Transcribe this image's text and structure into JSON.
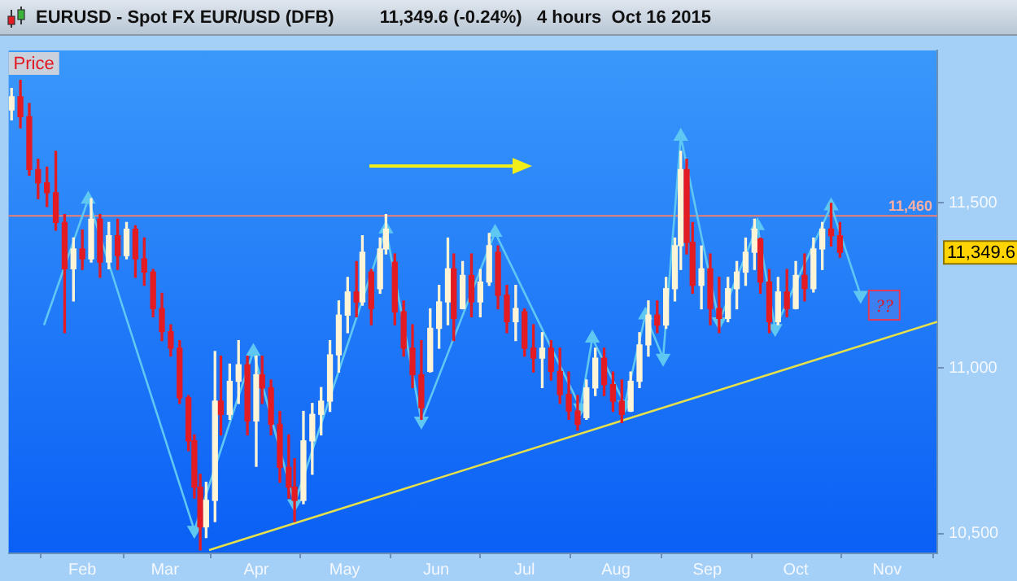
{
  "chart_data": {
    "type": "candlestick",
    "title": "EURUSD - Spot FX EUR/USD (DFB)",
    "subtitle": "11,349.6 (-0.24%)   4 hours  Oct 16 2015",
    "x": [
      "2015-01-08",
      "2015-01-11",
      "2015-01-14",
      "2015-01-17",
      "2015-01-20",
      "2015-01-23",
      "2015-01-26",
      "2015-01-29",
      "2015-02-01",
      "2015-02-04",
      "2015-02-07",
      "2015-02-10",
      "2015-02-13",
      "2015-02-16",
      "2015-02-19",
      "2015-02-22",
      "2015-02-25",
      "2015-02-28",
      "2015-03-03",
      "2015-03-06",
      "2015-03-09",
      "2015-03-11",
      "2015-03-13",
      "2015-03-15",
      "2015-03-18",
      "2015-03-20",
      "2015-03-23",
      "2015-03-26",
      "2015-03-29",
      "2015-04-01",
      "2015-04-03",
      "2015-04-06",
      "2015-04-09",
      "2015-04-12",
      "2015-04-14",
      "2015-04-17",
      "2015-04-20",
      "2015-04-23",
      "2015-04-26",
      "2015-04-29",
      "2015-05-02",
      "2015-05-05",
      "2015-05-07",
      "2015-05-10",
      "2015-05-13",
      "2015-05-15",
      "2015-05-18",
      "2015-05-21",
      "2015-05-24",
      "2015-05-27",
      "2015-05-30",
      "2015-06-02",
      "2015-06-05",
      "2015-06-07",
      "2015-06-10",
      "2015-06-13",
      "2015-06-16",
      "2015-06-19",
      "2015-06-22",
      "2015-06-25",
      "2015-06-28",
      "2015-07-01",
      "2015-07-04",
      "2015-07-07",
      "2015-07-10",
      "2015-07-13",
      "2015-07-16",
      "2015-07-19",
      "2015-07-22",
      "2015-07-25",
      "2015-07-28",
      "2015-07-31",
      "2015-08-03",
      "2015-08-06",
      "2015-08-09",
      "2015-08-12",
      "2015-08-15",
      "2015-08-18",
      "2015-08-21",
      "2015-08-23",
      "2015-08-25",
      "2015-08-27",
      "2015-08-30",
      "2015-09-02",
      "2015-09-05",
      "2015-09-08",
      "2015-09-11",
      "2015-09-14",
      "2015-09-17",
      "2015-09-19",
      "2015-09-22",
      "2015-09-25",
      "2015-09-28",
      "2015-10-01",
      "2015-10-04",
      "2015-10-07",
      "2015-10-10",
      "2015-10-13",
      "2015-10-16"
    ],
    "ohlc": [
      [
        11780,
        11845,
        11750,
        11820
      ],
      [
        11820,
        11870,
        11726,
        11760
      ],
      [
        11760,
        11800,
        11583,
        11600
      ],
      [
        11600,
        11631,
        11512,
        11560
      ],
      [
        11560,
        11607,
        11488,
        11530
      ],
      [
        11530,
        11655,
        11417,
        11440
      ],
      [
        11440,
        11464,
        11107,
        11300
      ],
      [
        11300,
        11393,
        11203,
        11360
      ],
      [
        11360,
        11417,
        11298,
        11330
      ],
      [
        11330,
        11512,
        11320,
        11450
      ],
      [
        11450,
        11464,
        11274,
        11320
      ],
      [
        11320,
        11440,
        11300,
        11400
      ],
      [
        11400,
        11450,
        11298,
        11340
      ],
      [
        11340,
        11440,
        11330,
        11420
      ],
      [
        11420,
        11430,
        11274,
        11330
      ],
      [
        11330,
        11393,
        11250,
        11290
      ],
      [
        11290,
        11298,
        11155,
        11180
      ],
      [
        11180,
        11226,
        11083,
        11110
      ],
      [
        11110,
        11131,
        11036,
        11060
      ],
      [
        11060,
        11083,
        10893,
        10910
      ],
      [
        10910,
        10917,
        10750,
        10780
      ],
      [
        10780,
        10798,
        10607,
        10640
      ],
      [
        10640,
        10679,
        10450,
        10520
      ],
      [
        10520,
        10655,
        10488,
        10600
      ],
      [
        10600,
        11050,
        10536,
        10900
      ],
      [
        10900,
        11036,
        10798,
        10860
      ],
      [
        10860,
        11012,
        10845,
        10960
      ],
      [
        10960,
        11083,
        10893,
        11010
      ],
      [
        11010,
        11036,
        10798,
        10840
      ],
      [
        10840,
        11036,
        10703,
        10980
      ],
      [
        10980,
        11036,
        10893,
        10940
      ],
      [
        10940,
        10964,
        10798,
        10830
      ],
      [
        10830,
        10869,
        10655,
        10700
      ],
      [
        10700,
        10798,
        10607,
        10640
      ],
      [
        10640,
        10726,
        10536,
        10600
      ],
      [
        10600,
        10869,
        10590,
        10780
      ],
      [
        10780,
        10893,
        10679,
        10860
      ],
      [
        10860,
        10941,
        10798,
        10900
      ],
      [
        10900,
        11083,
        10869,
        11040
      ],
      [
        11040,
        11203,
        10988,
        11160
      ],
      [
        11160,
        11274,
        11107,
        11230
      ],
      [
        11230,
        11322,
        11155,
        11200
      ],
      [
        11200,
        11400,
        11190,
        11350
      ],
      [
        11290,
        11298,
        11131,
        11180
      ],
      [
        11240,
        11393,
        11226,
        11360
      ],
      [
        11360,
        11464,
        11345,
        11420
      ],
      [
        11320,
        11345,
        11131,
        11170
      ],
      [
        11170,
        11203,
        11036,
        11060
      ],
      [
        11060,
        11131,
        10941,
        10980
      ],
      [
        10980,
        11083,
        10845,
        10880
      ],
      [
        10990,
        11179,
        10988,
        11120
      ],
      [
        11120,
        11250,
        11060,
        11200
      ],
      [
        11200,
        11393,
        11131,
        11300
      ],
      [
        11300,
        11345,
        11083,
        11150
      ],
      [
        11180,
        11322,
        11179,
        11280
      ],
      [
        11280,
        11345,
        11155,
        11200
      ],
      [
        11200,
        11298,
        11155,
        11260
      ],
      [
        11260,
        11407,
        11250,
        11370
      ],
      [
        11350,
        11369,
        11179,
        11220
      ],
      [
        11220,
        11250,
        11107,
        11140
      ],
      [
        11140,
        11250,
        11083,
        11180
      ],
      [
        11170,
        11179,
        11036,
        11060
      ],
      [
        11060,
        11131,
        10988,
        11030
      ],
      [
        11030,
        11107,
        10941,
        11060
      ],
      [
        11060,
        11083,
        10964,
        10990
      ],
      [
        10990,
        11060,
        10893,
        10920
      ],
      [
        10920,
        10988,
        10845,
        10870
      ],
      [
        10870,
        10917,
        10812,
        10830
      ],
      [
        10850,
        10964,
        10845,
        10940
      ],
      [
        10940,
        11060,
        10917,
        11030
      ],
      [
        11030,
        11060,
        10917,
        10950
      ],
      [
        10950,
        10988,
        10869,
        10900
      ],
      [
        10900,
        10964,
        10835,
        10860
      ],
      [
        10870,
        10988,
        10869,
        10960
      ],
      [
        10960,
        11107,
        10941,
        11070
      ],
      [
        11070,
        11203,
        11036,
        11160
      ],
      [
        11160,
        11203,
        11107,
        11130
      ],
      [
        11130,
        11274,
        11120,
        11240
      ],
      [
        11240,
        11393,
        11203,
        11370
      ],
      [
        11370,
        11655,
        11298,
        11600
      ],
      [
        11600,
        11631,
        11345,
        11380
      ],
      [
        11380,
        11440,
        11226,
        11250
      ],
      [
        11250,
        11369,
        11179,
        11300
      ],
      [
        11300,
        11345,
        11131,
        11180
      ],
      [
        11180,
        11274,
        11107,
        11150
      ],
      [
        11150,
        11274,
        11140,
        11240
      ],
      [
        11240,
        11322,
        11179,
        11290
      ],
      [
        11290,
        11393,
        11250,
        11350
      ],
      [
        11350,
        11450,
        11298,
        11420
      ],
      [
        11390,
        11393,
        11226,
        11260
      ],
      [
        11260,
        11298,
        11107,
        11140
      ],
      [
        11140,
        11274,
        11131,
        11230
      ],
      [
        11230,
        11298,
        11155,
        11180
      ],
      [
        11180,
        11322,
        11179,
        11280
      ],
      [
        11280,
        11345,
        11203,
        11240
      ],
      [
        11240,
        11393,
        11230,
        11360
      ],
      [
        11360,
        11440,
        11298,
        11420
      ],
      [
        11420,
        11498,
        11369,
        11400
      ],
      [
        11400,
        11440,
        11335,
        11349.6
      ]
    ],
    "colors": [
      "#fff4d6",
      "#e31b23",
      "#e31b23",
      "#e31b23",
      "#e31b23",
      "#e31b23",
      "#e31b23",
      "#fff4d6",
      "#e31b23",
      "#fff4d6",
      "#e31b23",
      "#fff4d6",
      "#e31b23",
      "#fff4d6",
      "#e31b23",
      "#e31b23",
      "#e31b23",
      "#e31b23",
      "#e31b23",
      "#e31b23",
      "#e31b23",
      "#e31b23",
      "#e31b23",
      "#fff4d6",
      "#fff4d6",
      "#e31b23",
      "#fff4d6",
      "#fff4d6",
      "#e31b23",
      "#fff4d6",
      "#e31b23",
      "#e31b23",
      "#e31b23",
      "#e31b23",
      "#e31b23",
      "#fff4d6",
      "#fff4d6",
      "#fff4d6",
      "#fff4d6",
      "#fff4d6",
      "#fff4d6",
      "#e31b23",
      "#fff4d6",
      "#e31b23",
      "#fff4d6",
      "#fff4d6",
      "#e31b23",
      "#e31b23",
      "#e31b23",
      "#e31b23",
      "#fff4d6",
      "#fff4d6",
      "#fff4d6",
      "#e31b23",
      "#fff4d6",
      "#e31b23",
      "#fff4d6",
      "#fff4d6",
      "#e31b23",
      "#e31b23",
      "#fff4d6",
      "#e31b23",
      "#e31b23",
      "#fff4d6",
      "#e31b23",
      "#e31b23",
      "#e31b23",
      "#e31b23",
      "#fff4d6",
      "#fff4d6",
      "#e31b23",
      "#e31b23",
      "#e31b23",
      "#fff4d6",
      "#fff4d6",
      "#fff4d6",
      "#e31b23",
      "#fff4d6",
      "#fff4d6",
      "#fff4d6",
      "#e31b23",
      "#e31b23",
      "#fff4d6",
      "#e31b23",
      "#e31b23",
      "#fff4d6",
      "#fff4d6",
      "#fff4d6",
      "#fff4d6",
      "#e31b23",
      "#e31b23",
      "#fff4d6",
      "#e31b23",
      "#fff4d6",
      "#e31b23",
      "#fff4d6",
      "#fff4d6",
      "#e31b23",
      "#e31b23"
    ],
    "series": [
      {
        "type": "line",
        "color": "#5ec8f2",
        "marker": "triangle",
        "x": [
          "2015-01-19",
          "2015-02-03",
          "2015-03-11",
          "2015-03-31",
          "2015-04-14",
          "2015-05-15",
          "2015-05-27",
          "2015-06-21",
          "2015-07-20",
          "2015-07-24",
          "2015-08-04",
          "2015-08-11",
          "2015-08-17",
          "2015-08-23",
          "2015-09-05",
          "2015-09-18",
          "2015-09-24",
          "2015-10-13",
          "2015-10-23"
        ],
        "values": [
          11130,
          11510,
          10510,
          11050,
          10590,
          11420,
          10840,
          11410,
          10880,
          11090,
          10890,
          11160,
          11030,
          11700,
          11140,
          11430,
          11120,
          11490,
          11220
        ]
      },
      {
        "type": "line",
        "color": "#e6e04a",
        "marker": "none",
        "x": [
          "2015-03-16",
          "2015-11-18"
        ],
        "values": [
          10450,
          11140
        ]
      }
    ],
    "xlim": [
      "2015-01-07",
      "2015-11-18"
    ],
    "xticks": [
      {
        "value": "2015-02-01",
        "label": "Feb"
      },
      {
        "value": "2015-03-01",
        "label": "Mar"
      },
      {
        "value": "2015-04-01",
        "label": "Apr"
      },
      {
        "value": "2015-05-01",
        "label": "May"
      },
      {
        "value": "2015-06-01",
        "label": "Jun"
      },
      {
        "value": "2015-07-01",
        "label": "Jul"
      },
      {
        "value": "2015-08-01",
        "label": "Aug"
      },
      {
        "value": "2015-09-01",
        "label": "Sep"
      },
      {
        "value": "2015-10-01",
        "label": "Oct"
      },
      {
        "value": "2015-11-01",
        "label": "Nov"
      }
    ],
    "ylim": [
      10440,
      11960
    ],
    "yticks": [
      {
        "value": 10500,
        "label": "10,500"
      },
      {
        "value": 11000,
        "label": "11,000"
      },
      {
        "value": 11500,
        "label": "11,500"
      }
    ],
    "ref_lines": [
      {
        "axis": "y",
        "value": 11460,
        "label": "11,460",
        "color": "#f08070"
      }
    ],
    "annotations": [
      "Price",
      {
        "text": "??",
        "x": "2015-10-31",
        "y": 11190
      },
      "11,349.6"
    ]
  }
}
